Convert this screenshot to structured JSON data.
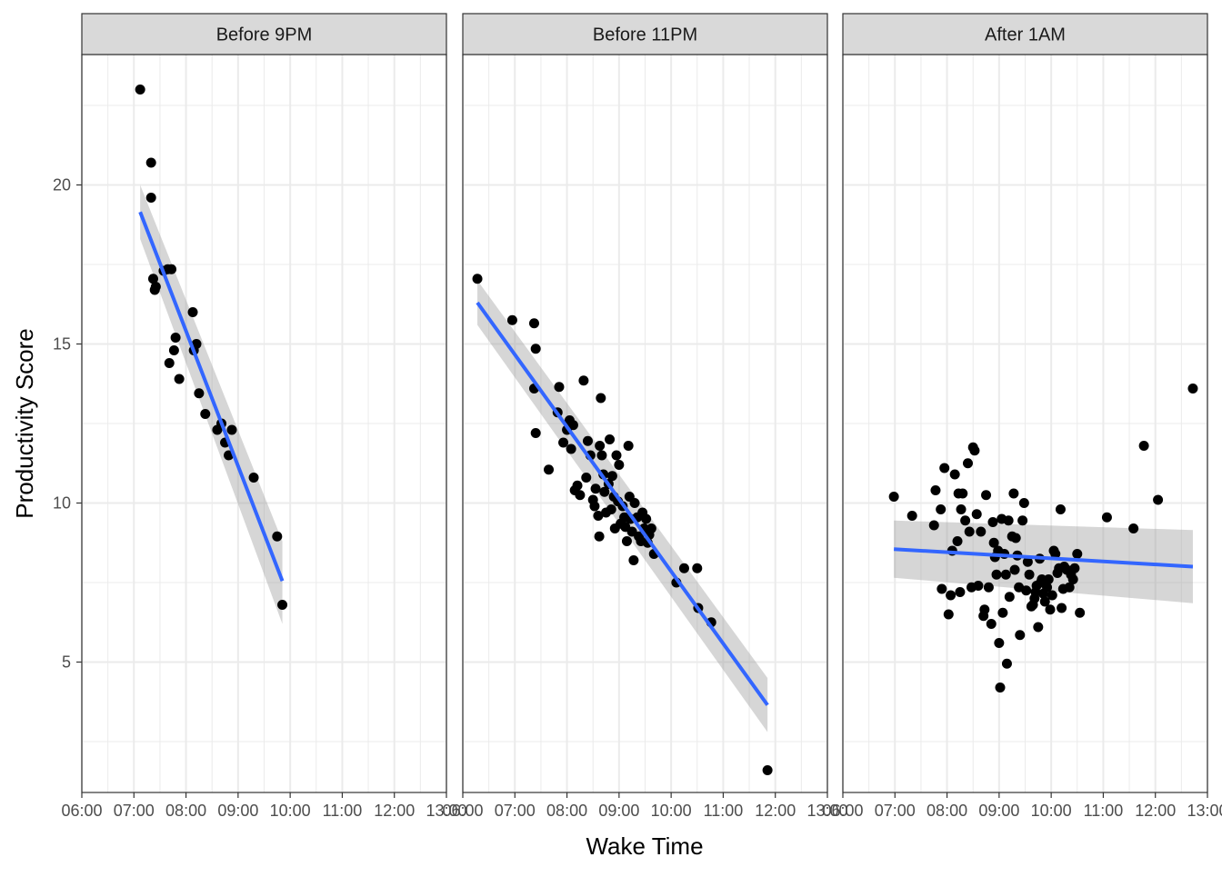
{
  "chart_data": {
    "type": "scatter",
    "facet_layout": "1 row x 3 columns",
    "xlabel": "Wake Time",
    "ylabel": "Productivity Score",
    "x_tick_labels": [
      "06:00",
      "07:00",
      "08:00",
      "09:00",
      "10:00",
      "11:00",
      "12:00",
      "13:00"
    ],
    "x_unit": "hour of day",
    "xlim": [
      6.0,
      13.0
    ],
    "y_ticks": [
      5,
      10,
      15,
      20
    ],
    "ylim": [
      0.9,
      24.1
    ],
    "grid": true,
    "colors": {
      "points": "#000000",
      "fit_line": "#3366FF",
      "ribbon": "#999999",
      "strip": "#D9D9D9"
    },
    "panels": [
      {
        "title": "Before 9PM",
        "fit": {
          "x": [
            7.12,
            9.85
          ],
          "y": [
            19.15,
            7.55
          ],
          "ci_lower": [
            18.3,
            6.2
          ],
          "ci_upper": [
            20.0,
            8.8
          ]
        },
        "points": [
          [
            7.12,
            23.0
          ],
          [
            7.33,
            20.7
          ],
          [
            7.33,
            19.6
          ],
          [
            7.37,
            17.05
          ],
          [
            7.4,
            16.7
          ],
          [
            7.42,
            16.8
          ],
          [
            7.57,
            17.3
          ],
          [
            7.65,
            17.35
          ],
          [
            7.72,
            17.35
          ],
          [
            7.68,
            14.4
          ],
          [
            7.77,
            14.8
          ],
          [
            7.8,
            15.2
          ],
          [
            7.87,
            13.9
          ],
          [
            8.13,
            16.0
          ],
          [
            8.15,
            14.8
          ],
          [
            8.2,
            15.0
          ],
          [
            8.25,
            13.45
          ],
          [
            8.37,
            12.8
          ],
          [
            8.6,
            12.3
          ],
          [
            8.68,
            12.5
          ],
          [
            8.75,
            11.9
          ],
          [
            8.82,
            11.5
          ],
          [
            8.88,
            12.3
          ],
          [
            9.3,
            10.8
          ],
          [
            9.75,
            8.95
          ],
          [
            9.85,
            6.8
          ]
        ]
      },
      {
        "title": "Before 11PM",
        "fit": {
          "x": [
            6.28,
            11.85
          ],
          "y": [
            16.3,
            3.65
          ],
          "ci_lower": [
            15.6,
            2.8
          ],
          "ci_upper": [
            17.0,
            4.5
          ]
        },
        "points": [
          [
            6.28,
            17.05
          ],
          [
            6.95,
            15.75
          ],
          [
            7.37,
            15.65
          ],
          [
            7.4,
            14.85
          ],
          [
            7.37,
            13.6
          ],
          [
            7.4,
            12.2
          ],
          [
            7.65,
            11.05
          ],
          [
            7.82,
            12.85
          ],
          [
            7.85,
            13.65
          ],
          [
            7.93,
            11.9
          ],
          [
            8.0,
            12.3
          ],
          [
            8.05,
            12.6
          ],
          [
            8.08,
            11.7
          ],
          [
            8.12,
            12.45
          ],
          [
            8.15,
            10.4
          ],
          [
            8.2,
            10.55
          ],
          [
            8.25,
            10.25
          ],
          [
            8.32,
            13.85
          ],
          [
            8.37,
            10.8
          ],
          [
            8.4,
            11.95
          ],
          [
            8.45,
            11.5
          ],
          [
            8.5,
            10.1
          ],
          [
            8.53,
            9.9
          ],
          [
            8.55,
            10.45
          ],
          [
            8.6,
            9.6
          ],
          [
            8.62,
            8.95
          ],
          [
            8.63,
            11.8
          ],
          [
            8.65,
            13.3
          ],
          [
            8.67,
            11.5
          ],
          [
            8.7,
            10.9
          ],
          [
            8.72,
            10.35
          ],
          [
            8.75,
            9.7
          ],
          [
            8.8,
            10.6
          ],
          [
            8.82,
            12.0
          ],
          [
            8.85,
            9.8
          ],
          [
            8.87,
            10.85
          ],
          [
            8.9,
            10.2
          ],
          [
            8.92,
            9.2
          ],
          [
            8.95,
            11.5
          ],
          [
            8.98,
            10.05
          ],
          [
            9.0,
            11.2
          ],
          [
            9.03,
            9.35
          ],
          [
            9.07,
            9.9
          ],
          [
            9.1,
            9.55
          ],
          [
            9.12,
            9.25
          ],
          [
            9.15,
            8.8
          ],
          [
            9.18,
            11.8
          ],
          [
            9.2,
            10.2
          ],
          [
            9.22,
            9.5
          ],
          [
            9.25,
            9.1
          ],
          [
            9.28,
            8.2
          ],
          [
            9.3,
            10.0
          ],
          [
            9.35,
            9.55
          ],
          [
            9.38,
            8.95
          ],
          [
            9.42,
            8.8
          ],
          [
            9.45,
            9.7
          ],
          [
            9.48,
            9.2
          ],
          [
            9.52,
            9.5
          ],
          [
            9.55,
            8.75
          ],
          [
            9.58,
            9.0
          ],
          [
            9.62,
            9.2
          ],
          [
            9.67,
            8.4
          ],
          [
            10.1,
            7.5
          ],
          [
            10.25,
            7.95
          ],
          [
            10.5,
            7.95
          ],
          [
            10.52,
            6.7
          ],
          [
            10.77,
            6.25
          ],
          [
            11.85,
            1.6
          ]
        ]
      },
      {
        "title": "After 1AM",
        "fit": {
          "x": [
            6.98,
            12.72
          ],
          "y": [
            8.55,
            8.0
          ],
          "ci_lower": [
            7.65,
            6.85
          ],
          "ci_upper": [
            9.45,
            9.15
          ]
        },
        "points": [
          [
            6.98,
            10.2
          ],
          [
            7.33,
            9.6
          ],
          [
            7.75,
            9.3
          ],
          [
            7.78,
            10.4
          ],
          [
            7.88,
            9.8
          ],
          [
            7.9,
            7.3
          ],
          [
            7.95,
            11.1
          ],
          [
            8.03,
            6.5
          ],
          [
            8.07,
            7.1
          ],
          [
            8.1,
            8.5
          ],
          [
            8.15,
            10.9
          ],
          [
            8.2,
            8.8
          ],
          [
            8.22,
            10.3
          ],
          [
            8.25,
            7.2
          ],
          [
            8.27,
            9.8
          ],
          [
            8.3,
            10.3
          ],
          [
            8.35,
            9.45
          ],
          [
            8.4,
            11.25
          ],
          [
            8.43,
            9.1
          ],
          [
            8.47,
            7.35
          ],
          [
            8.5,
            11.75
          ],
          [
            8.53,
            11.65
          ],
          [
            8.57,
            9.65
          ],
          [
            8.6,
            7.4
          ],
          [
            8.65,
            9.1
          ],
          [
            8.7,
            6.45
          ],
          [
            8.72,
            6.65
          ],
          [
            8.75,
            10.25
          ],
          [
            8.8,
            7.35
          ],
          [
            8.85,
            6.2
          ],
          [
            8.88,
            9.4
          ],
          [
            8.9,
            8.75
          ],
          [
            8.92,
            8.3
          ],
          [
            8.95,
            7.75
          ],
          [
            8.98,
            8.5
          ],
          [
            9.0,
            5.6
          ],
          [
            9.02,
            4.2
          ],
          [
            9.05,
            9.5
          ],
          [
            9.07,
            6.55
          ],
          [
            9.1,
            8.4
          ],
          [
            9.13,
            7.75
          ],
          [
            9.15,
            4.95
          ],
          [
            9.18,
            9.45
          ],
          [
            9.2,
            7.05
          ],
          [
            9.25,
            8.95
          ],
          [
            9.28,
            10.3
          ],
          [
            9.3,
            7.9
          ],
          [
            9.32,
            8.9
          ],
          [
            9.35,
            8.35
          ],
          [
            9.38,
            7.35
          ],
          [
            9.4,
            5.85
          ],
          [
            9.45,
            9.45
          ],
          [
            9.48,
            10.0
          ],
          [
            9.52,
            7.25
          ],
          [
            9.55,
            8.15
          ],
          [
            9.58,
            7.75
          ],
          [
            9.62,
            6.75
          ],
          [
            9.65,
            6.8
          ],
          [
            9.68,
            7.0
          ],
          [
            9.7,
            7.2
          ],
          [
            9.72,
            7.4
          ],
          [
            9.75,
            6.1
          ],
          [
            9.78,
            8.25
          ],
          [
            9.8,
            7.5
          ],
          [
            9.82,
            7.6
          ],
          [
            9.85,
            7.15
          ],
          [
            9.88,
            6.9
          ],
          [
            9.92,
            7.35
          ],
          [
            9.95,
            7.6
          ],
          [
            9.98,
            6.65
          ],
          [
            10.02,
            7.1
          ],
          [
            10.05,
            8.5
          ],
          [
            10.08,
            8.4
          ],
          [
            10.12,
            7.8
          ],
          [
            10.15,
            7.95
          ],
          [
            10.18,
            9.8
          ],
          [
            10.2,
            6.7
          ],
          [
            10.23,
            7.3
          ],
          [
            10.25,
            8.0
          ],
          [
            10.3,
            7.9
          ],
          [
            10.35,
            7.35
          ],
          [
            10.38,
            7.75
          ],
          [
            10.42,
            7.6
          ],
          [
            10.45,
            7.95
          ],
          [
            10.5,
            8.4
          ],
          [
            10.55,
            6.55
          ],
          [
            11.07,
            9.55
          ],
          [
            11.58,
            9.2
          ],
          [
            11.78,
            11.8
          ],
          [
            12.05,
            10.1
          ],
          [
            12.72,
            13.6
          ]
        ]
      }
    ]
  }
}
